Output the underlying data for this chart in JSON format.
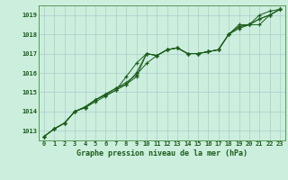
{
  "title": "Graphe pression niveau de la mer (hPa)",
  "bg_color": "#cceedd",
  "grid_color": "#aacccc",
  "line_color": "#1a5c1a",
  "ylim": [
    1012.5,
    1019.5
  ],
  "xlim": [
    -0.5,
    23.5
  ],
  "yticks": [
    1013,
    1014,
    1015,
    1016,
    1017,
    1018,
    1019
  ],
  "xticks": [
    0,
    1,
    2,
    3,
    4,
    5,
    6,
    7,
    8,
    9,
    10,
    11,
    12,
    13,
    14,
    15,
    16,
    17,
    18,
    19,
    20,
    21,
    22,
    23
  ],
  "series": [
    [
      1012.7,
      1013.1,
      1013.4,
      1014.0,
      1014.2,
      1014.5,
      1014.8,
      1015.1,
      1015.4,
      1015.8,
      1017.0,
      1016.9,
      1017.2,
      1017.3,
      1017.0,
      1017.0,
      1017.1,
      1017.2,
      1018.0,
      1018.5,
      1018.5,
      1019.0,
      1019.2,
      1019.3
    ],
    [
      1012.7,
      1013.1,
      1013.4,
      1014.0,
      1014.2,
      1014.6,
      1014.9,
      1015.2,
      1015.5,
      1015.9,
      1016.5,
      1016.9,
      1017.2,
      1017.3,
      1017.0,
      1017.0,
      1017.1,
      1017.2,
      1018.0,
      1018.3,
      1018.5,
      1018.5,
      1019.0,
      1019.3
    ],
    [
      1012.7,
      1013.1,
      1013.4,
      1014.0,
      1014.2,
      1014.6,
      1014.9,
      1015.2,
      1015.4,
      1016.0,
      1017.0,
      1016.9,
      1017.2,
      1017.3,
      1017.0,
      1017.0,
      1017.1,
      1017.2,
      1018.0,
      1018.4,
      1018.5,
      1018.8,
      1019.0,
      1019.3
    ],
    [
      1012.7,
      1013.1,
      1013.4,
      1014.0,
      1014.25,
      1014.6,
      1014.85,
      1015.1,
      1015.8,
      1016.5,
      1017.0,
      1016.9,
      1017.2,
      1017.3,
      1017.0,
      1017.0,
      1017.1,
      1017.2,
      1018.0,
      1018.4,
      1018.5,
      1018.8,
      1019.0,
      1019.3
    ]
  ]
}
